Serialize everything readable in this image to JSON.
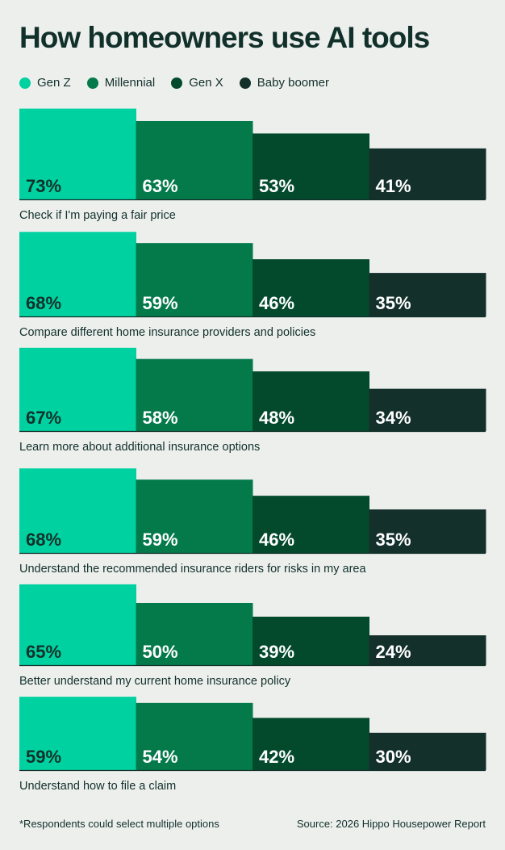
{
  "chart_data": {
    "type": "bar",
    "title": "How homeowners use AI tools",
    "xlabel": "",
    "ylabel": "",
    "ylim": [
      0,
      100
    ],
    "legend_placement": "top-left",
    "legend": [
      "Gen Z",
      "Millennial",
      "Gen X",
      "Baby boomer"
    ],
    "colors": [
      "#00d1a0",
      "#047a4b",
      "#034a2d",
      "#14302b"
    ],
    "label_colors": [
      "#11302a",
      "#ffffff",
      "#ffffff",
      "#ffffff"
    ],
    "categories": [
      "Check if I'm paying a fair price",
      "Compare different home insurance providers and policies",
      "Learn more about additional insurance options",
      "Understand the recommended insurance riders for risks in my area",
      "Better understand my current home insurance policy",
      "Understand how to file a claim"
    ],
    "series": [
      {
        "name": "Gen Z",
        "values": [
          73,
          68,
          67,
          68,
          65,
          59
        ]
      },
      {
        "name": "Millennial",
        "values": [
          63,
          59,
          58,
          59,
          50,
          54
        ]
      },
      {
        "name": "Gen X",
        "values": [
          53,
          46,
          48,
          46,
          39,
          42
        ]
      },
      {
        "name": "Baby boomer",
        "values": [
          41,
          35,
          34,
          35,
          24,
          30
        ]
      }
    ]
  },
  "footer": {
    "note": "*Respondents could select multiple options",
    "source": "Source: 2026 Hippo Housepower Report"
  }
}
